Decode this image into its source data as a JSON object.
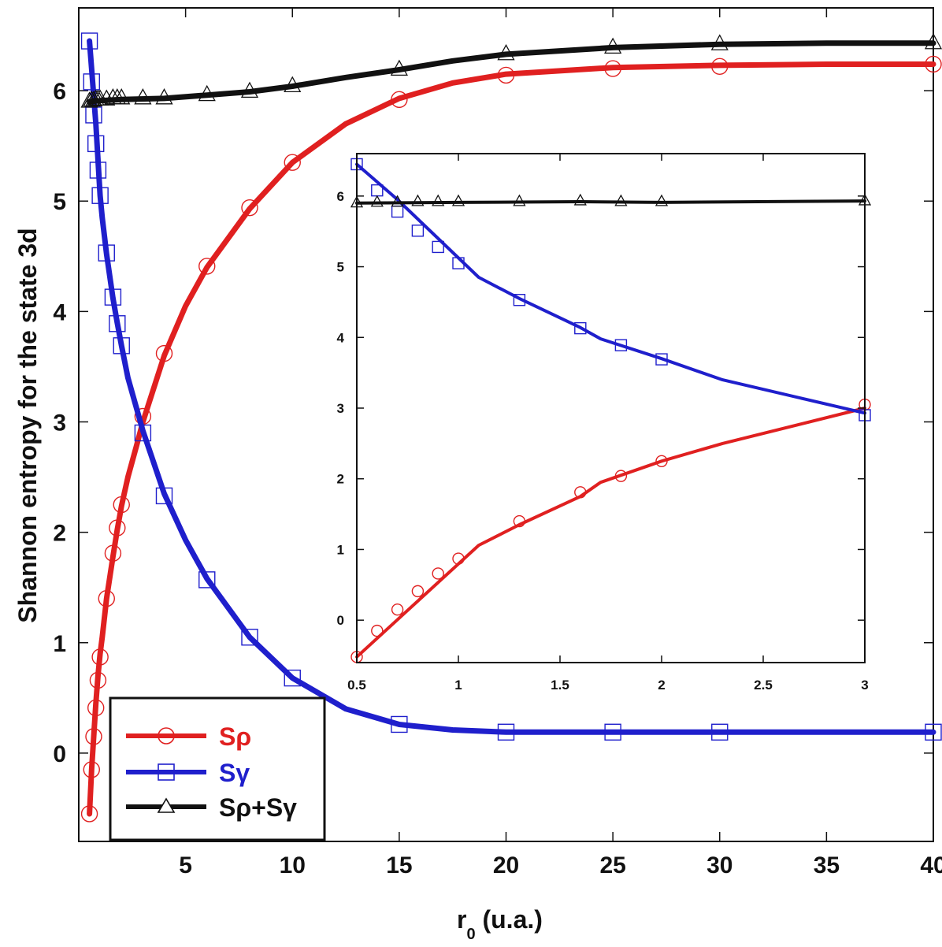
{
  "chart_data": [
    {
      "id": "main",
      "type": "line",
      "title": "",
      "xlabel": {
        "base": "r",
        "sub": "0",
        "rest": " (u.a.)"
      },
      "ylabel": "Shannon entropy for the state 3d",
      "xlim": [
        0,
        40
      ],
      "ylim": [
        -0.8,
        6.75
      ],
      "xticks": [
        5,
        10,
        15,
        20,
        25,
        30,
        35,
        40
      ],
      "yticks": [
        0,
        1,
        2,
        3,
        4,
        5,
        6
      ],
      "grid": false,
      "legend_position": "bottom-left",
      "series": [
        {
          "name": "Sρ",
          "color": "#e02020",
          "marker": "circle",
          "line": [
            [
              0.5,
              -0.55
            ],
            [
              0.6,
              -0.15
            ],
            [
              0.7,
              0.15
            ],
            [
              0.8,
              0.45
            ],
            [
              0.9,
              0.7
            ],
            [
              1.0,
              0.9
            ],
            [
              1.1,
              1.05
            ],
            [
              1.3,
              1.4
            ],
            [
              1.6,
              1.78
            ],
            [
              1.8,
              2.02
            ],
            [
              2.0,
              2.24
            ],
            [
              2.3,
              2.5
            ],
            [
              2.7,
              2.78
            ],
            [
              3.0,
              3.0
            ],
            [
              4.0,
              3.6
            ],
            [
              5.0,
              4.05
            ],
            [
              6.0,
              4.4
            ],
            [
              8.0,
              4.93
            ],
            [
              10.0,
              5.35
            ],
            [
              12.5,
              5.7
            ],
            [
              15.0,
              5.93
            ],
            [
              17.5,
              6.07
            ],
            [
              20.0,
              6.15
            ],
            [
              25.0,
              6.21
            ],
            [
              30.0,
              6.23
            ],
            [
              35.0,
              6.24
            ],
            [
              40.0,
              6.24
            ]
          ],
          "points": [
            [
              0.5,
              -0.55
            ],
            [
              0.6,
              -0.15
            ],
            [
              0.7,
              0.15
            ],
            [
              0.8,
              0.41
            ],
            [
              0.9,
              0.66
            ],
            [
              1.0,
              0.87
            ],
            [
              1.3,
              1.4
            ],
            [
              1.6,
              1.81
            ],
            [
              1.8,
              2.04
            ],
            [
              2.0,
              2.25
            ],
            [
              3.0,
              3.05
            ],
            [
              4.0,
              3.62
            ],
            [
              6.0,
              4.41
            ],
            [
              8.0,
              4.94
            ],
            [
              10.0,
              5.35
            ],
            [
              15.0,
              5.92
            ],
            [
              20.0,
              6.14
            ],
            [
              25.0,
              6.2
            ],
            [
              30.0,
              6.22
            ],
            [
              40.0,
              6.24
            ]
          ]
        },
        {
          "name": "Sγ",
          "color": "#1f1fcc",
          "marker": "square",
          "line": [
            [
              0.5,
              6.45
            ],
            [
              0.7,
              5.95
            ],
            [
              0.8,
              5.7
            ],
            [
              1.0,
              5.05
            ],
            [
              1.1,
              4.85
            ],
            [
              1.3,
              4.52
            ],
            [
              1.6,
              4.12
            ],
            [
              1.8,
              3.9
            ],
            [
              2.0,
              3.69
            ],
            [
              2.3,
              3.4
            ],
            [
              3.0,
              2.92
            ],
            [
              4.0,
              2.35
            ],
            [
              5.0,
              1.93
            ],
            [
              6.0,
              1.58
            ],
            [
              8.0,
              1.05
            ],
            [
              10.0,
              0.68
            ],
            [
              12.5,
              0.4
            ],
            [
              15.0,
              0.26
            ],
            [
              17.5,
              0.21
            ],
            [
              20.0,
              0.19
            ],
            [
              25.0,
              0.19
            ],
            [
              30.0,
              0.19
            ],
            [
              35.0,
              0.19
            ],
            [
              40.0,
              0.19
            ]
          ],
          "points": [
            [
              0.5,
              6.45
            ],
            [
              0.6,
              6.08
            ],
            [
              0.7,
              5.78
            ],
            [
              0.8,
              5.52
            ],
            [
              0.9,
              5.28
            ],
            [
              1.0,
              5.05
            ],
            [
              1.3,
              4.53
            ],
            [
              1.6,
              4.13
            ],
            [
              1.8,
              3.89
            ],
            [
              2.0,
              3.69
            ],
            [
              3.0,
              2.9
            ],
            [
              4.0,
              2.33
            ],
            [
              6.0,
              1.57
            ],
            [
              8.0,
              1.05
            ],
            [
              10.0,
              0.68
            ],
            [
              15.0,
              0.26
            ],
            [
              20.0,
              0.19
            ],
            [
              25.0,
              0.19
            ],
            [
              30.0,
              0.19
            ],
            [
              40.0,
              0.19
            ]
          ]
        },
        {
          "name": "Sρ+Sγ",
          "color": "#111111",
          "marker": "triangle",
          "line": [
            [
              0.5,
              5.9
            ],
            [
              1.0,
              5.91
            ],
            [
              2.0,
              5.92
            ],
            [
              4.0,
              5.93
            ],
            [
              6.0,
              5.96
            ],
            [
              8.0,
              5.99
            ],
            [
              10.0,
              6.04
            ],
            [
              12.5,
              6.12
            ],
            [
              15.0,
              6.19
            ],
            [
              17.5,
              6.27
            ],
            [
              20.0,
              6.33
            ],
            [
              25.0,
              6.39
            ],
            [
              30.0,
              6.42
            ],
            [
              35.0,
              6.43
            ],
            [
              40.0,
              6.43
            ]
          ],
          "points": [
            [
              0.5,
              5.9
            ],
            [
              0.6,
              5.91
            ],
            [
              0.7,
              5.91
            ],
            [
              0.8,
              5.92
            ],
            [
              0.9,
              5.92
            ],
            [
              1.0,
              5.92
            ],
            [
              1.3,
              5.92
            ],
            [
              1.6,
              5.93
            ],
            [
              1.8,
              5.93
            ],
            [
              2.0,
              5.93
            ],
            [
              3.0,
              5.93
            ],
            [
              4.0,
              5.93
            ],
            [
              6.0,
              5.96
            ],
            [
              8.0,
              5.99
            ],
            [
              10.0,
              6.04
            ],
            [
              15.0,
              6.19
            ],
            [
              20.0,
              6.33
            ],
            [
              25.0,
              6.39
            ],
            [
              30.0,
              6.42
            ],
            [
              40.0,
              6.43
            ]
          ]
        }
      ]
    },
    {
      "id": "inset",
      "type": "line",
      "title": "",
      "xlim": [
        0.5,
        3.0
      ],
      "ylim": [
        -0.6,
        6.6
      ],
      "xticks": [
        "0.5",
        "1",
        "1.5",
        "2",
        "2.5",
        "3"
      ],
      "yticks": [
        "0",
        "1",
        "2",
        "3",
        "4",
        "5",
        "6"
      ],
      "grid": false,
      "series": [
        {
          "name": "Sρ",
          "color": "#e02020",
          "marker": "circle",
          "line": [
            [
              0.5,
              -0.52
            ],
            [
              1.1,
              1.06
            ],
            [
              1.3,
              1.35
            ],
            [
              1.6,
              1.75
            ],
            [
              1.7,
              1.95
            ],
            [
              2.0,
              2.25
            ],
            [
              2.3,
              2.5
            ],
            [
              3.0,
              3.0
            ]
          ],
          "points": [
            [
              0.5,
              -0.52
            ],
            [
              0.6,
              -0.15
            ],
            [
              0.7,
              0.15
            ],
            [
              0.8,
              0.41
            ],
            [
              0.9,
              0.66
            ],
            [
              1.0,
              0.87
            ],
            [
              1.3,
              1.4
            ],
            [
              1.6,
              1.81
            ],
            [
              1.8,
              2.04
            ],
            [
              2.0,
              2.25
            ],
            [
              3.0,
              3.05
            ]
          ]
        },
        {
          "name": "Sγ",
          "color": "#1f1fcc",
          "marker": "square",
          "line": [
            [
              0.5,
              6.45
            ],
            [
              0.7,
              5.95
            ],
            [
              1.1,
              4.85
            ],
            [
              1.3,
              4.55
            ],
            [
              1.6,
              4.14
            ],
            [
              1.7,
              3.98
            ],
            [
              2.0,
              3.7
            ],
            [
              2.3,
              3.4
            ],
            [
              3.0,
              2.93
            ]
          ],
          "points": [
            [
              0.5,
              6.45
            ],
            [
              0.6,
              6.08
            ],
            [
              0.7,
              5.78
            ],
            [
              0.8,
              5.51
            ],
            [
              0.9,
              5.28
            ],
            [
              1.0,
              5.05
            ],
            [
              1.3,
              4.53
            ],
            [
              1.6,
              4.13
            ],
            [
              1.8,
              3.89
            ],
            [
              2.0,
              3.69
            ],
            [
              3.0,
              2.9
            ]
          ]
        },
        {
          "name": "Sρ+Sγ",
          "color": "#111111",
          "marker": "triangle",
          "line": [
            [
              0.5,
              5.9
            ],
            [
              1.0,
              5.91
            ],
            [
              1.6,
              5.92
            ],
            [
              2.0,
              5.91
            ],
            [
              3.0,
              5.93
            ]
          ],
          "points": [
            [
              0.5,
              5.9
            ],
            [
              0.6,
              5.91
            ],
            [
              0.7,
              5.91
            ],
            [
              0.8,
              5.92
            ],
            [
              0.9,
              5.92
            ],
            [
              1.0,
              5.92
            ],
            [
              1.3,
              5.92
            ],
            [
              1.6,
              5.93
            ],
            [
              1.8,
              5.92
            ],
            [
              2.0,
              5.92
            ],
            [
              3.0,
              5.93
            ]
          ]
        }
      ]
    }
  ]
}
